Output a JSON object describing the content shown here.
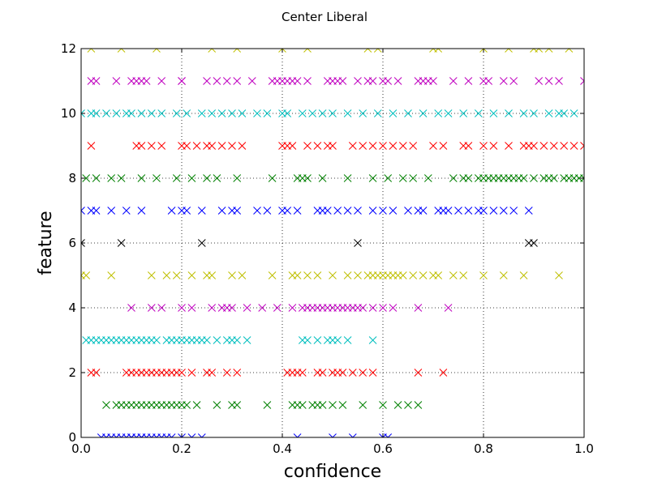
{
  "chart_data": {
    "type": "scatter",
    "title": "Center Liberal",
    "xlabel": "confidence",
    "ylabel": "feature",
    "xlim": [
      0.0,
      1.0
    ],
    "ylim": [
      0,
      12
    ],
    "xticks": [
      "0.0",
      "0.2",
      "0.4",
      "0.6",
      "0.8",
      "1.0"
    ],
    "yticks": [
      "0",
      "2",
      "4",
      "6",
      "8",
      "10",
      "12"
    ],
    "xtick_values": [
      0.0,
      0.2,
      0.4,
      0.6,
      0.8,
      1.0
    ],
    "ytick_values": [
      0,
      2,
      4,
      6,
      8,
      10,
      12
    ],
    "grid": true,
    "marker": "x",
    "series": [
      {
        "feature": 0,
        "color": "#0000ff",
        "x": [
          0.04,
          0.05,
          0.06,
          0.07,
          0.08,
          0.09,
          0.1,
          0.1,
          0.11,
          0.12,
          0.12,
          0.13,
          0.14,
          0.15,
          0.16,
          0.17,
          0.18,
          0.2,
          0.22,
          0.24,
          0.43,
          0.5,
          0.54,
          0.6,
          0.61
        ]
      },
      {
        "feature": 1,
        "color": "#008000",
        "x": [
          0.05,
          0.07,
          0.08,
          0.09,
          0.1,
          0.11,
          0.12,
          0.13,
          0.14,
          0.15,
          0.16,
          0.17,
          0.18,
          0.19,
          0.2,
          0.21,
          0.23,
          0.27,
          0.3,
          0.31,
          0.37,
          0.42,
          0.43,
          0.44,
          0.46,
          0.47,
          0.48,
          0.5,
          0.52,
          0.56,
          0.6,
          0.63,
          0.65,
          0.67
        ]
      },
      {
        "feature": 2,
        "color": "#ff0000",
        "x": [
          0.02,
          0.03,
          0.09,
          0.1,
          0.11,
          0.12,
          0.13,
          0.14,
          0.15,
          0.16,
          0.17,
          0.18,
          0.19,
          0.2,
          0.22,
          0.25,
          0.26,
          0.29,
          0.31,
          0.41,
          0.42,
          0.43,
          0.44,
          0.47,
          0.48,
          0.5,
          0.51,
          0.52,
          0.54,
          0.56,
          0.58,
          0.67,
          0.72
        ]
      },
      {
        "feature": 3,
        "color": "#00bfbf",
        "x": [
          0.01,
          0.02,
          0.03,
          0.04,
          0.05,
          0.06,
          0.07,
          0.08,
          0.09,
          0.1,
          0.11,
          0.12,
          0.13,
          0.14,
          0.15,
          0.17,
          0.18,
          0.19,
          0.2,
          0.21,
          0.22,
          0.23,
          0.24,
          0.25,
          0.27,
          0.29,
          0.3,
          0.31,
          0.33,
          0.44,
          0.45,
          0.47,
          0.49,
          0.5,
          0.51,
          0.53,
          0.58
        ]
      },
      {
        "feature": 4,
        "color": "#bf00bf",
        "x": [
          0.1,
          0.14,
          0.16,
          0.2,
          0.22,
          0.26,
          0.28,
          0.29,
          0.3,
          0.33,
          0.36,
          0.39,
          0.42,
          0.44,
          0.45,
          0.46,
          0.47,
          0.48,
          0.49,
          0.5,
          0.51,
          0.52,
          0.53,
          0.54,
          0.55,
          0.56,
          0.58,
          0.6,
          0.62,
          0.67,
          0.73
        ]
      },
      {
        "feature": 5,
        "color": "#bfbf00",
        "x": [
          0.0,
          0.01,
          0.06,
          0.14,
          0.17,
          0.19,
          0.22,
          0.25,
          0.26,
          0.3,
          0.32,
          0.38,
          0.42,
          0.43,
          0.45,
          0.47,
          0.5,
          0.53,
          0.55,
          0.57,
          0.58,
          0.59,
          0.6,
          0.61,
          0.62,
          0.63,
          0.64,
          0.66,
          0.68,
          0.7,
          0.71,
          0.74,
          0.76,
          0.8,
          0.84,
          0.88,
          0.95
        ]
      },
      {
        "feature": 6,
        "color": "#000000",
        "x": [
          0.0,
          0.08,
          0.24,
          0.55,
          0.89,
          0.9
        ]
      },
      {
        "feature": 7,
        "color": "#0000ff",
        "x": [
          0.0,
          0.02,
          0.03,
          0.06,
          0.09,
          0.12,
          0.18,
          0.2,
          0.21,
          0.24,
          0.28,
          0.3,
          0.31,
          0.35,
          0.37,
          0.4,
          0.41,
          0.43,
          0.47,
          0.48,
          0.49,
          0.51,
          0.53,
          0.55,
          0.58,
          0.6,
          0.62,
          0.65,
          0.67,
          0.68,
          0.71,
          0.72,
          0.73,
          0.75,
          0.77,
          0.79,
          0.8,
          0.82,
          0.84,
          0.86,
          0.89
        ]
      },
      {
        "feature": 8,
        "color": "#008000",
        "x": [
          0.01,
          0.03,
          0.06,
          0.08,
          0.12,
          0.15,
          0.19,
          0.22,
          0.25,
          0.27,
          0.31,
          0.38,
          0.43,
          0.44,
          0.45,
          0.48,
          0.53,
          0.58,
          0.61,
          0.64,
          0.66,
          0.69,
          0.74,
          0.76,
          0.77,
          0.79,
          0.8,
          0.81,
          0.82,
          0.83,
          0.84,
          0.85,
          0.86,
          0.87,
          0.88,
          0.9,
          0.92,
          0.93,
          0.94,
          0.96,
          0.97,
          0.98,
          0.99,
          1.0
        ]
      },
      {
        "feature": 9,
        "color": "#ff0000",
        "x": [
          0.02,
          0.11,
          0.12,
          0.14,
          0.16,
          0.2,
          0.21,
          0.23,
          0.25,
          0.26,
          0.28,
          0.3,
          0.32,
          0.4,
          0.41,
          0.42,
          0.45,
          0.47,
          0.49,
          0.5,
          0.54,
          0.56,
          0.58,
          0.6,
          0.62,
          0.64,
          0.66,
          0.7,
          0.72,
          0.76,
          0.77,
          0.8,
          0.82,
          0.85,
          0.88,
          0.89,
          0.9,
          0.92,
          0.94,
          0.96,
          0.98,
          1.0
        ]
      },
      {
        "feature": 10,
        "color": "#00bfbf",
        "x": [
          0.0,
          0.02,
          0.03,
          0.05,
          0.07,
          0.09,
          0.1,
          0.12,
          0.14,
          0.16,
          0.19,
          0.21,
          0.24,
          0.26,
          0.28,
          0.3,
          0.32,
          0.35,
          0.37,
          0.4,
          0.41,
          0.44,
          0.46,
          0.48,
          0.5,
          0.53,
          0.56,
          0.59,
          0.62,
          0.65,
          0.68,
          0.71,
          0.73,
          0.76,
          0.79,
          0.82,
          0.85,
          0.88,
          0.9,
          0.93,
          0.95,
          0.96,
          0.98
        ]
      },
      {
        "feature": 11,
        "color": "#bf00bf",
        "x": [
          0.02,
          0.03,
          0.07,
          0.1,
          0.11,
          0.12,
          0.13,
          0.16,
          0.2,
          0.2,
          0.25,
          0.27,
          0.29,
          0.31,
          0.34,
          0.38,
          0.39,
          0.4,
          0.41,
          0.42,
          0.43,
          0.45,
          0.49,
          0.5,
          0.51,
          0.52,
          0.55,
          0.57,
          0.58,
          0.6,
          0.61,
          0.63,
          0.67,
          0.68,
          0.69,
          0.7,
          0.74,
          0.77,
          0.8,
          0.81,
          0.84,
          0.86,
          0.91,
          0.93,
          0.95,
          1.0
        ]
      },
      {
        "feature": 12,
        "color": "#bfbf00",
        "x": [
          0.02,
          0.08,
          0.15,
          0.26,
          0.31,
          0.4,
          0.45,
          0.57,
          0.59,
          0.7,
          0.71,
          0.8,
          0.85,
          0.9,
          0.91,
          0.93,
          0.97
        ]
      }
    ]
  }
}
